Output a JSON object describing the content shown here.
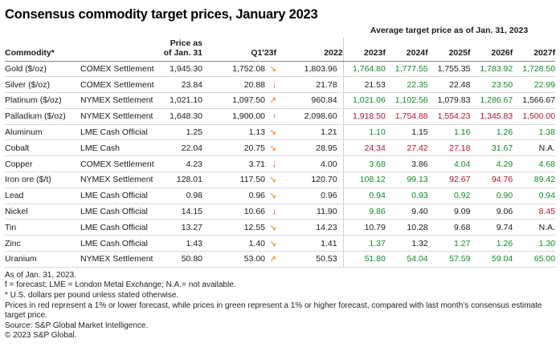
{
  "chart_data": {
    "type": "table",
    "title": "Consensus commodity target prices, January 2023",
    "group_header": "Average target price as of Jan. 31, 2023",
    "column_labels": {
      "commodity": "Commodity*",
      "exchange": "",
      "price_line1": "Price as",
      "price_line2": "of Jan. 31",
      "q1": "Q1'23f",
      "y2022": "2022",
      "forecasts": [
        "2023f",
        "2024f",
        "2025f",
        "2026f",
        "2027f"
      ]
    },
    "rows": [
      {
        "commodity": "Gold ($/oz)",
        "exchange": "COMEX Settlement",
        "price_jan31": "1,945.30",
        "q1_23f": "1,752.08",
        "q1_trend": "down-right",
        "y2022": "1,803.96",
        "forecasts": [
          {
            "value": "1,764.80",
            "color": "green"
          },
          {
            "value": "1,777.55",
            "color": "green"
          },
          {
            "value": "1,755.35",
            "color": "black"
          },
          {
            "value": "1,783.92",
            "color": "green"
          },
          {
            "value": "1,728.50",
            "color": "green"
          }
        ]
      },
      {
        "commodity": "Silver ($/oz)",
        "exchange": "COMEX Settlement",
        "price_jan31": "23.84",
        "q1_23f": "20.88",
        "q1_trend": "down",
        "y2022": "21.78",
        "forecasts": [
          {
            "value": "21.53",
            "color": "black"
          },
          {
            "value": "22.35",
            "color": "green"
          },
          {
            "value": "22.48",
            "color": "black"
          },
          {
            "value": "23.50",
            "color": "green"
          },
          {
            "value": "22.99",
            "color": "green"
          }
        ]
      },
      {
        "commodity": "Platinum ($/oz)",
        "exchange": "NYMEX Settlement",
        "price_jan31": "1,021.10",
        "q1_23f": "1,097.50",
        "q1_trend": "up-right",
        "y2022": "960.84",
        "forecasts": [
          {
            "value": "1,021.06",
            "color": "green"
          },
          {
            "value": "1,102.56",
            "color": "green"
          },
          {
            "value": "1,079.83",
            "color": "black"
          },
          {
            "value": "1,286.67",
            "color": "green"
          },
          {
            "value": "1,566.67",
            "color": "black"
          }
        ]
      },
      {
        "commodity": "Palladium ($/oz)",
        "exchange": "NYMEX Settlement",
        "price_jan31": "1,648.30",
        "q1_23f": "1,900.00",
        "q1_trend": "up",
        "y2022": "2,098.60",
        "forecasts": [
          {
            "value": "1,918.50",
            "color": "red"
          },
          {
            "value": "1,754.88",
            "color": "red"
          },
          {
            "value": "1,554.23",
            "color": "red"
          },
          {
            "value": "1,345.83",
            "color": "red"
          },
          {
            "value": "1,500.00",
            "color": "red"
          }
        ]
      },
      {
        "commodity": "Aluminum",
        "exchange": "LME Cash Official",
        "price_jan31": "1.25",
        "q1_23f": "1.13",
        "q1_trend": "down-right",
        "y2022": "1.21",
        "forecasts": [
          {
            "value": "1.10",
            "color": "green"
          },
          {
            "value": "1.15",
            "color": "black"
          },
          {
            "value": "1.16",
            "color": "green"
          },
          {
            "value": "1.26",
            "color": "green"
          },
          {
            "value": "1.38",
            "color": "green"
          }
        ]
      },
      {
        "commodity": "Cobalt",
        "exchange": "LME Cash",
        "price_jan31": "22.04",
        "q1_23f": "20.75",
        "q1_trend": "down-right",
        "y2022": "28.95",
        "forecasts": [
          {
            "value": "24.34",
            "color": "red"
          },
          {
            "value": "27.42",
            "color": "red"
          },
          {
            "value": "27.18",
            "color": "red"
          },
          {
            "value": "31.67",
            "color": "green"
          },
          {
            "value": "N.A.",
            "color": "black"
          }
        ]
      },
      {
        "commodity": "Copper",
        "exchange": "COMEX Settlement",
        "price_jan31": "4.23",
        "q1_23f": "3.71",
        "q1_trend": "down",
        "y2022": "4.00",
        "forecasts": [
          {
            "value": "3.68",
            "color": "green"
          },
          {
            "value": "3.86",
            "color": "black"
          },
          {
            "value": "4.04",
            "color": "green"
          },
          {
            "value": "4.29",
            "color": "green"
          },
          {
            "value": "4.68",
            "color": "green"
          }
        ]
      },
      {
        "commodity": "Iron ore ($/t)",
        "exchange": "NYMEX Settlement",
        "price_jan31": "128.01",
        "q1_23f": "117.50",
        "q1_trend": "down-right",
        "y2022": "120.70",
        "forecasts": [
          {
            "value": "108.12",
            "color": "green"
          },
          {
            "value": "99.13",
            "color": "green"
          },
          {
            "value": "92.67",
            "color": "red"
          },
          {
            "value": "94.76",
            "color": "red"
          },
          {
            "value": "89.42",
            "color": "green"
          }
        ]
      },
      {
        "commodity": "Lead",
        "exchange": "LME Cash Official",
        "price_jan31": "0.98",
        "q1_23f": "0.96",
        "q1_trend": "down-right",
        "y2022": "0.96",
        "forecasts": [
          {
            "value": "0.94",
            "color": "green"
          },
          {
            "value": "0.93",
            "color": "green"
          },
          {
            "value": "0.92",
            "color": "green"
          },
          {
            "value": "0.90",
            "color": "green"
          },
          {
            "value": "0.94",
            "color": "green"
          }
        ]
      },
      {
        "commodity": "Nickel",
        "exchange": "LME Cash Official",
        "price_jan31": "14.15",
        "q1_23f": "10.66",
        "q1_trend": "down",
        "y2022": "11.90",
        "forecasts": [
          {
            "value": "9.86",
            "color": "green"
          },
          {
            "value": "9.40",
            "color": "black"
          },
          {
            "value": "9.09",
            "color": "black"
          },
          {
            "value": "9.06",
            "color": "black"
          },
          {
            "value": "8.45",
            "color": "red"
          }
        ]
      },
      {
        "commodity": "Tin",
        "exchange": "LME Cash Official",
        "price_jan31": "13.27",
        "q1_23f": "12.55",
        "q1_trend": "down-right",
        "y2022": "14.23",
        "forecasts": [
          {
            "value": "10.79",
            "color": "black"
          },
          {
            "value": "10.28",
            "color": "black"
          },
          {
            "value": "9.68",
            "color": "black"
          },
          {
            "value": "9.74",
            "color": "black"
          },
          {
            "value": "N.A.",
            "color": "black"
          }
        ]
      },
      {
        "commodity": "Zinc",
        "exchange": "LME Cash Official",
        "price_jan31": "1.43",
        "q1_23f": "1.40",
        "q1_trend": "down-right",
        "y2022": "1.41",
        "forecasts": [
          {
            "value": "1.37",
            "color": "green"
          },
          {
            "value": "1.32",
            "color": "black"
          },
          {
            "value": "1.27",
            "color": "green"
          },
          {
            "value": "1.26",
            "color": "green"
          },
          {
            "value": "1.30",
            "color": "green"
          }
        ]
      },
      {
        "commodity": "Uranium",
        "exchange": "NYMEX Settlement",
        "price_jan31": "50.80",
        "q1_23f": "53.00",
        "q1_trend": "up-right",
        "y2022": "50.53",
        "forecasts": [
          {
            "value": "51.80",
            "color": "green"
          },
          {
            "value": "54.04",
            "color": "green"
          },
          {
            "value": "57.59",
            "color": "green"
          },
          {
            "value": "59.04",
            "color": "green"
          },
          {
            "value": "65.00",
            "color": "green"
          }
        ]
      }
    ]
  },
  "icons": {
    "trend_arrows": {
      "down-right": "↘",
      "down": "↓",
      "up-right": "↗",
      "up": "↑"
    }
  },
  "colors": {
    "green_forecast": "#128a2c",
    "red_forecast": "#b5122b",
    "arrow_orange": "#f0a03c",
    "arrow_red": "#c23a34",
    "arrow_green": "#2f9e41",
    "text": "#1a1a1a"
  },
  "footnotes": [
    "As of Jan. 31, 2023.",
    "f = forecast; LME = London Metal Exchange; N.A.= not available.",
    "* U.S. dollars per pound unless stated otherwise.",
    "Prices in red represent a 1% or lower forecast, while prices in green represent a 1% or higher forecast, compared with last month’s consensus estimate target price.",
    "Source: S&P Global Market Intelligence.",
    "© 2023 S&P Global."
  ]
}
